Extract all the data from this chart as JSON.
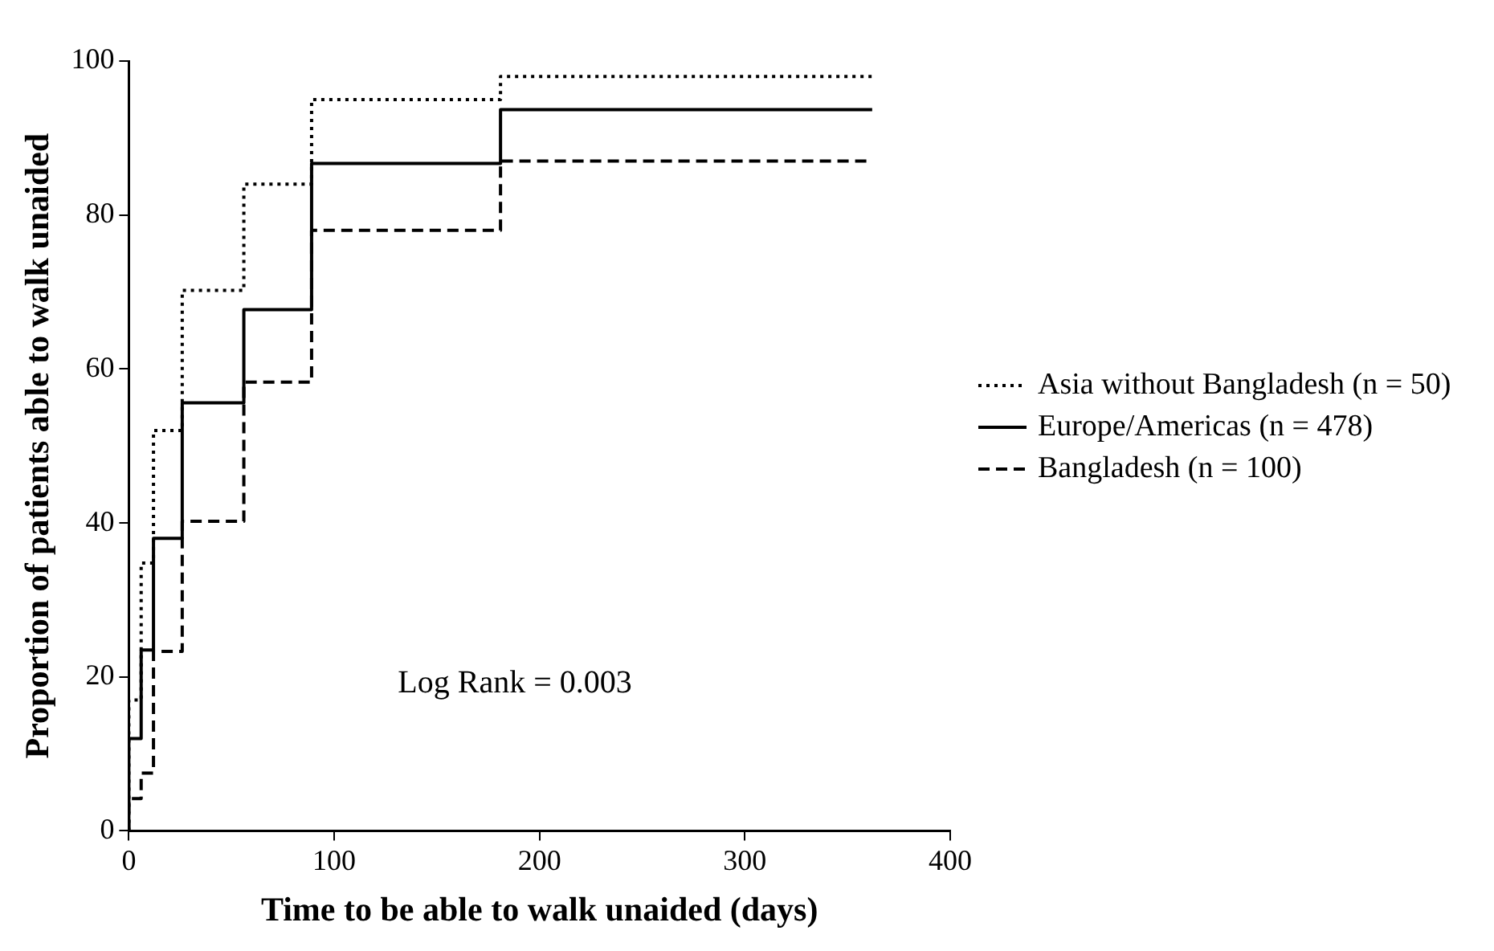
{
  "chart_data": {
    "type": "step",
    "xlabel": "Time to be able to walk unaided (days)",
    "ylabel": "Proportion of patients able to walk unaided",
    "xlim": [
      0,
      400
    ],
    "xticks": [
      0,
      100,
      200,
      300,
      400
    ],
    "ylim": [
      0,
      100
    ],
    "yticks": [
      0,
      20,
      40,
      60,
      80,
      100
    ],
    "grid": false,
    "legend": "right",
    "marker": "none",
    "annotations": [
      "Log Rank = 0.003"
    ],
    "series": [
      {
        "name": "Asia without Bangladesh (n = 50)",
        "color": "#000000",
        "line_style": "dotted",
        "x": [
          0,
          6,
          12,
          26,
          56,
          89,
          181,
          362
        ],
        "values": [
          0,
          17,
          34.8,
          52,
          70.2,
          84,
          95,
          98
        ]
      },
      {
        "name": "Europe/Americas (n = 478)",
        "color": "#000000",
        "line_style": "solid",
        "x": [
          0,
          6,
          12,
          26,
          56,
          89,
          181,
          362
        ],
        "values": [
          0,
          12,
          23.5,
          38,
          55.6,
          67.7,
          86.7,
          93.7
        ]
      },
      {
        "name": "Bangladesh (n = 100)",
        "color": "#000000",
        "line_style": "dashed",
        "x": [
          0,
          6,
          12,
          26,
          56,
          89,
          181,
          362
        ],
        "values": [
          0,
          4.2,
          7.5,
          23.3,
          40.2,
          58.3,
          78,
          87
        ]
      }
    ]
  }
}
